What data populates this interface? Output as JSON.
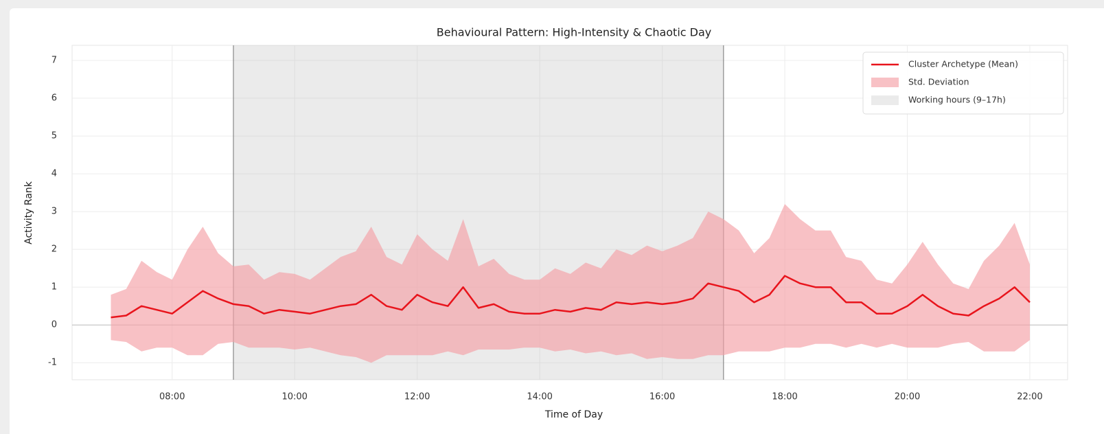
{
  "chart_data": {
    "type": "line",
    "title": "Behavioural Pattern: High-Intensity & Chaotic Day",
    "x_label": "Time of Day",
    "y_label": "Activity Rank",
    "x": [
      "07:00",
      "07:15",
      "07:30",
      "07:45",
      "08:00",
      "08:15",
      "08:30",
      "08:45",
      "09:00",
      "09:15",
      "09:30",
      "09:45",
      "10:00",
      "10:15",
      "10:30",
      "10:45",
      "11:00",
      "11:15",
      "11:30",
      "11:45",
      "12:00",
      "12:15",
      "12:30",
      "12:45",
      "13:00",
      "13:15",
      "13:30",
      "13:45",
      "14:00",
      "14:15",
      "14:30",
      "14:45",
      "15:00",
      "15:15",
      "15:30",
      "15:45",
      "16:00",
      "16:15",
      "16:30",
      "16:45",
      "17:00",
      "17:15",
      "17:30",
      "17:45",
      "18:00",
      "18:15",
      "18:30",
      "18:45",
      "19:00",
      "19:15",
      "19:30",
      "19:45",
      "20:00",
      "20:15",
      "20:30",
      "20:45",
      "21:00",
      "21:15",
      "21:30",
      "21:45",
      "22:00"
    ],
    "series": [
      {
        "name": "Cluster Archetype (Mean)",
        "color": "#e8141c",
        "values": [
          0.2,
          0.25,
          0.5,
          0.4,
          0.3,
          0.6,
          0.9,
          0.7,
          0.55,
          0.5,
          0.3,
          0.4,
          0.35,
          0.3,
          0.4,
          0.5,
          0.55,
          0.8,
          0.5,
          0.4,
          0.8,
          0.6,
          0.5,
          1.0,
          0.45,
          0.55,
          0.35,
          0.3,
          0.3,
          0.4,
          0.35,
          0.45,
          0.4,
          0.6,
          0.55,
          0.6,
          0.55,
          0.6,
          0.7,
          1.1,
          1.0,
          0.9,
          0.6,
          0.8,
          1.3,
          1.1,
          1.0,
          1.0,
          0.6,
          0.6,
          0.3,
          0.3,
          0.5,
          0.8,
          0.5,
          0.3,
          0.25,
          0.5,
          0.7,
          1.0,
          0.6
        ]
      },
      {
        "name": "Std. Deviation",
        "color": "#f4a0a6",
        "values": [
          0.6,
          0.7,
          1.2,
          1.0,
          0.9,
          1.4,
          1.7,
          1.2,
          1.0,
          1.1,
          0.9,
          1.0,
          1.0,
          0.9,
          1.1,
          1.3,
          1.4,
          1.8,
          1.3,
          1.2,
          1.6,
          1.4,
          1.2,
          1.8,
          1.1,
          1.2,
          1.0,
          0.9,
          0.9,
          1.1,
          1.0,
          1.2,
          1.1,
          1.4,
          1.3,
          1.5,
          1.4,
          1.5,
          1.6,
          1.9,
          1.8,
          1.6,
          1.3,
          1.5,
          1.9,
          1.7,
          1.5,
          1.5,
          1.2,
          1.1,
          0.9,
          0.8,
          1.1,
          1.4,
          1.1,
          0.8,
          0.7,
          1.2,
          1.4,
          1.7,
          1.0
        ]
      }
    ],
    "span": {
      "name": "Working hours (9–17h)",
      "range": [
        "09:00",
        "17:00"
      ],
      "color": "#bdbdbd"
    },
    "xlim": [
      "06:22",
      "22:37"
    ],
    "xticks": [
      "08:00",
      "10:00",
      "12:00",
      "14:00",
      "16:00",
      "18:00",
      "20:00",
      "22:00"
    ],
    "ylim": [
      -1.45,
      7.4
    ],
    "yticks": [
      -1,
      0,
      1,
      2,
      3,
      4,
      5,
      6,
      7
    ],
    "grid": true,
    "legend": "upper right"
  }
}
